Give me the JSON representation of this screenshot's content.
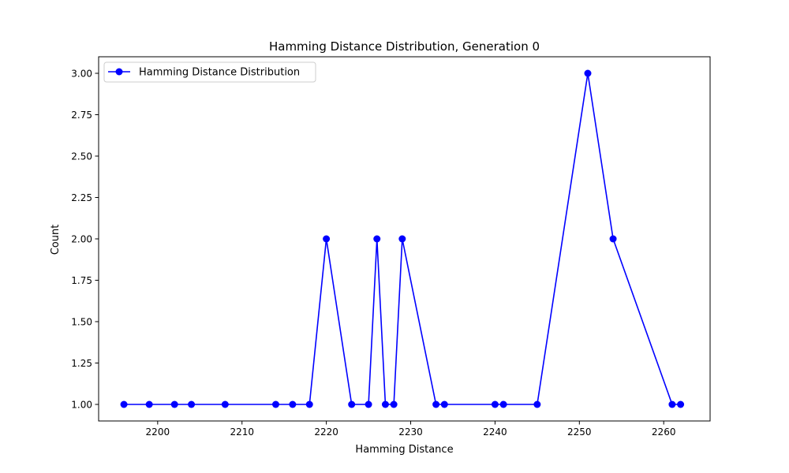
{
  "chart_data": {
    "type": "line",
    "title": "Hamming Distance Distribution, Generation 0",
    "xlabel": "Hamming Distance",
    "ylabel": "Count",
    "xlim": [
      2193,
      2265.5
    ],
    "ylim": [
      0.9,
      3.1
    ],
    "xticks": [
      2200,
      2210,
      2220,
      2230,
      2240,
      2250,
      2260
    ],
    "yticks": [
      1.0,
      1.25,
      1.5,
      1.75,
      2.0,
      2.25,
      2.5,
      2.75,
      3.0
    ],
    "grid": false,
    "legend_position": "upper-left",
    "color": "#0000ff",
    "series": [
      {
        "name": "Hamming Distance Distribution",
        "x": [
          2196,
          2199,
          2202,
          2204,
          2208,
          2214,
          2216,
          2218,
          2220,
          2223,
          2225,
          2226,
          2227,
          2228,
          2229,
          2233,
          2234,
          2240,
          2241,
          2245,
          2251,
          2254,
          2261,
          2262
        ],
        "y": [
          1,
          1,
          1,
          1,
          1,
          1,
          1,
          1,
          2,
          1,
          1,
          2,
          1,
          1,
          2,
          1,
          1,
          1,
          1,
          1,
          3,
          2,
          1,
          1
        ]
      }
    ]
  }
}
